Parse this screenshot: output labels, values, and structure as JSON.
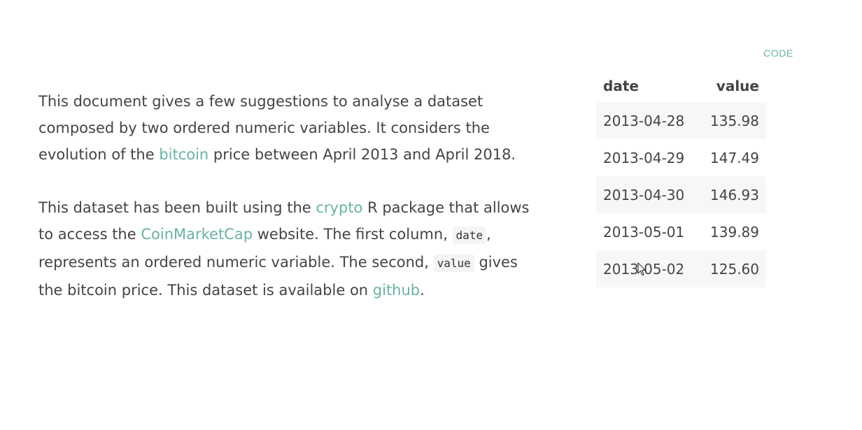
{
  "code_button": {
    "label": "CODE"
  },
  "paragraph1": {
    "part1": "This document gives a few suggestions to analyse a dataset composed by two ordered numeric variables. It considers the evolution of the ",
    "link_bitcoin": "bitcoin",
    "part2": " price between April 2013 and April 2018."
  },
  "paragraph2": {
    "part1": "This dataset has been built using the ",
    "link_crypto": "crypto",
    "part2": " R package that allows to access the ",
    "link_coinmarketcap": "CoinMarketCap",
    "part3": " website. The first column, ",
    "code_date": "date",
    "part4": ", represents an ordered numeric variable. The second, ",
    "code_value": "value",
    "part5": " gives the bitcoin price. This dataset is available on ",
    "link_github": "github",
    "part6": "."
  },
  "table": {
    "columns": [
      "date",
      "value"
    ],
    "rows": [
      {
        "date": "2013-04-28",
        "value": "135.98"
      },
      {
        "date": "2013-04-29",
        "value": "147.49"
      },
      {
        "date": "2013-04-30",
        "value": "146.93"
      },
      {
        "date": "2013-05-01",
        "value": "139.89"
      },
      {
        "date": "2013-05-02",
        "value": "125.60"
      }
    ]
  },
  "colors": {
    "accent": "#69b3a2",
    "text": "#444444",
    "stripe": "#f7f7f7"
  },
  "icons": {
    "cursor": "mouse-pointer-icon"
  }
}
